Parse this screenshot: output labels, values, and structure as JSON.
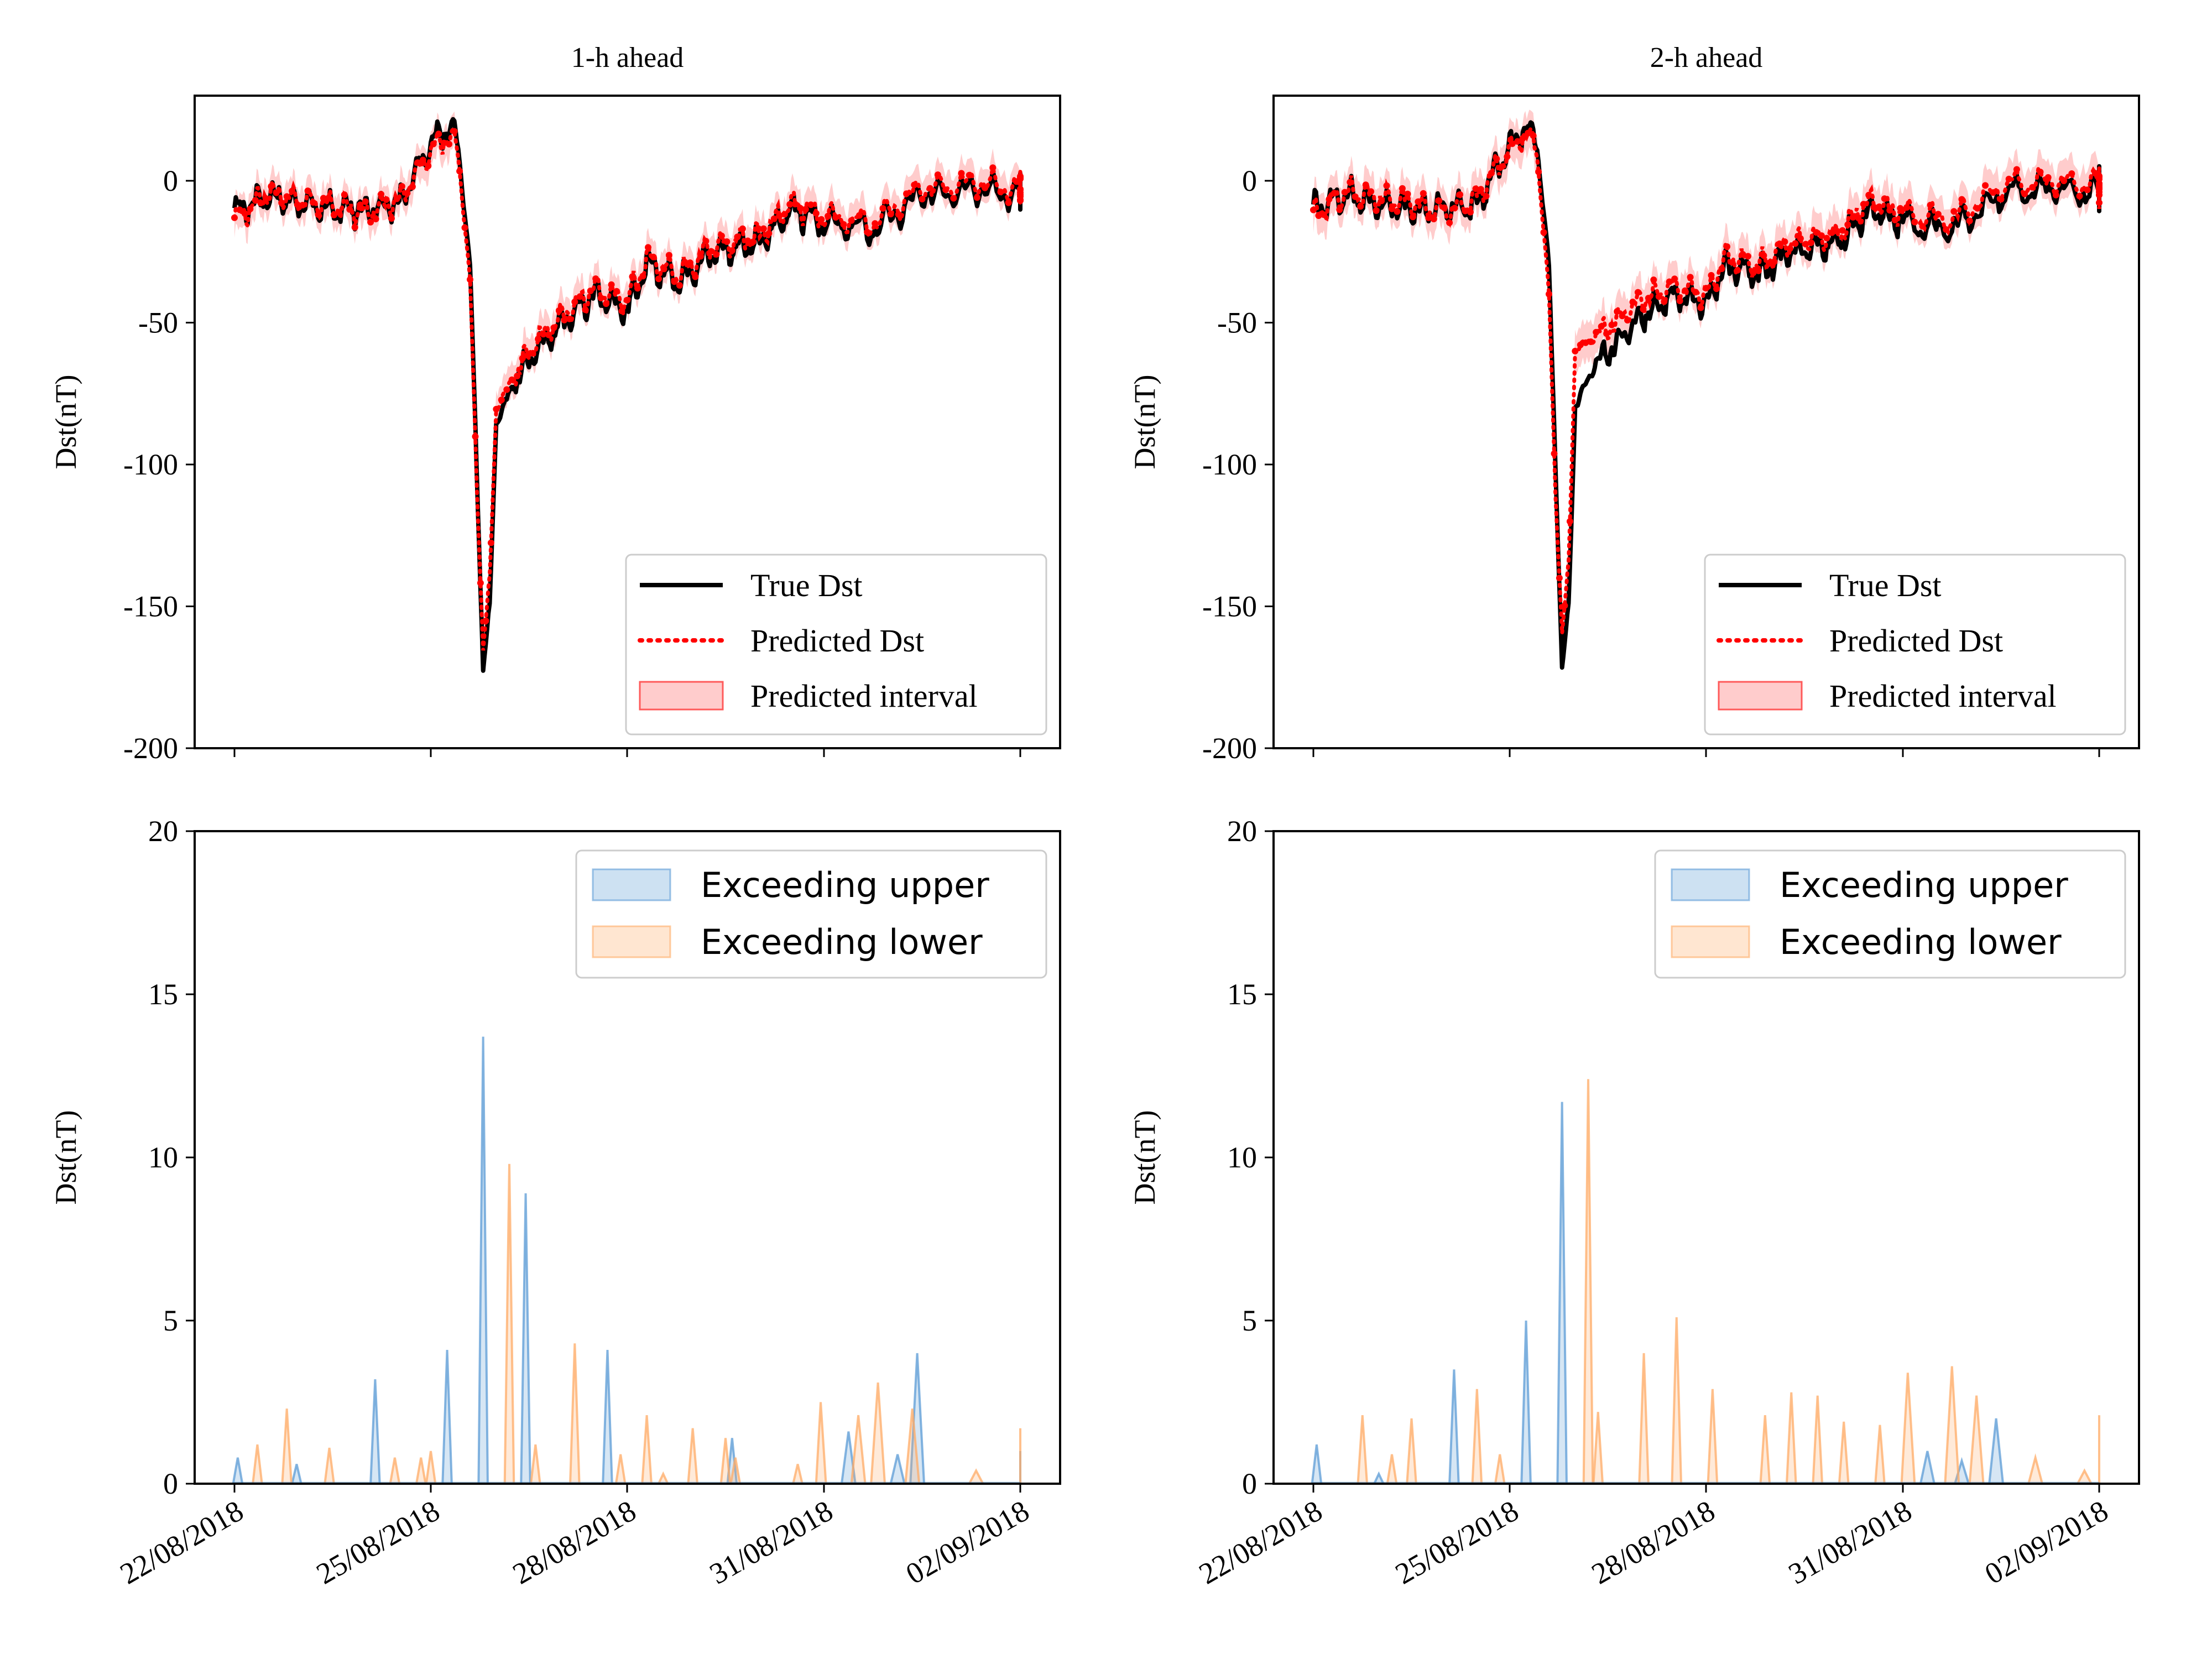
{
  "colors": {
    "true_line": "#000000",
    "pred_line": "#ff0000",
    "interval_fill": "#ff9999",
    "upper_fill": "#5b9bd5",
    "lower_fill": "#ffab66"
  },
  "x_dates": [
    "22/08/2018",
    "25/08/2018",
    "28/08/2018",
    "31/08/2018",
    "02/09/2018"
  ],
  "chart_data": [
    {
      "type": "line",
      "title": "1-h ahead",
      "ylabel": "Dst(nT)",
      "xlabel": "",
      "ylim": [
        -200,
        30
      ],
      "yticks": [
        0,
        -50,
        -100,
        -150,
        -200
      ],
      "ytick_labels": [
        "0",
        "-50",
        "-100",
        "-150",
        "-200"
      ],
      "x_ticks": [
        "22/08/2018",
        "25/08/2018",
        "28/08/2018",
        "31/08/2018",
        "02/09/2018"
      ],
      "show_xtick_labels": false,
      "legend": {
        "position": "lower-right",
        "items": [
          "True Dst",
          "Predicted Dst",
          "Predicted interval"
        ]
      },
      "x_key_days": [
        0,
        0.5,
        1,
        1.5,
        2,
        2.5,
        3.0,
        3.2,
        3.4,
        3.6,
        3.7,
        3.8,
        3.9,
        4.0,
        4.3,
        4.6,
        5.0,
        5.5,
        6.0,
        6.3,
        6.8,
        7.3,
        7.5,
        8.0,
        8.5,
        9.0,
        9.5,
        10.0,
        10.5,
        11.0,
        11.5,
        12.0
      ],
      "series": [
        {
          "name": "True Dst",
          "y_key": [
            -11,
            -5,
            -8,
            -10,
            -10,
            -8,
            12,
            18,
            16,
            -30,
            -100,
            -172,
            -150,
            -85,
            -70,
            -60,
            -50,
            -40,
            -45,
            -30,
            -35,
            -25,
            -24,
            -22,
            -10,
            -15,
            -17,
            -5,
            -2,
            -5,
            -3,
            -4
          ]
        },
        {
          "name": "Predicted Dst",
          "y_key": [
            -14,
            -4,
            -7,
            -9,
            -11,
            -7,
            10,
            15,
            13,
            -35,
            -105,
            -165,
            -140,
            -80,
            -68,
            -57,
            -48,
            -38,
            -42,
            -28,
            -33,
            -23,
            -22,
            -20,
            -8,
            -13,
            -15,
            -3,
            0,
            -3,
            -2,
            -3
          ]
        }
      ],
      "interval_halfwidth": 4
    },
    {
      "type": "line",
      "title": "2-h ahead",
      "ylabel": "Dst(nT)",
      "xlabel": "",
      "ylim": [
        -200,
        30
      ],
      "yticks": [
        0,
        -50,
        -100,
        -150,
        -200
      ],
      "ytick_labels": [
        "0",
        "-50",
        "-100",
        "-150",
        "-200"
      ],
      "x_ticks": [
        "22/08/2018",
        "25/08/2018",
        "28/08/2018",
        "31/08/2018",
        "02/09/2018"
      ],
      "show_xtick_labels": false,
      "legend": {
        "position": "lower-right",
        "items": [
          "True Dst",
          "Predicted Dst",
          "Predicted interval"
        ]
      },
      "x_key_days": [
        0,
        0.5,
        1,
        1.5,
        2,
        2.5,
        3.0,
        3.2,
        3.4,
        3.6,
        3.7,
        3.8,
        3.9,
        4.0,
        4.3,
        4.6,
        5.0,
        5.5,
        6.0,
        6.3,
        6.8,
        7.3,
        7.5,
        8.0,
        8.5,
        9.0,
        9.5,
        10.0,
        10.5,
        11.0,
        11.5,
        12.0
      ],
      "series": [
        {
          "name": "True Dst",
          "y_key": [
            -10,
            -5,
            -8,
            -10,
            -10,
            -8,
            12,
            18,
            16,
            -30,
            -100,
            -172,
            -150,
            -80,
            -65,
            -58,
            -48,
            -40,
            -43,
            -30,
            -33,
            -25,
            -24,
            -22,
            -10,
            -15,
            -17,
            -5,
            -2,
            -5,
            0,
            -5
          ]
        },
        {
          "name": "Predicted Dst",
          "y_key": [
            -12,
            -4,
            -6,
            -8,
            -11,
            -6,
            11,
            16,
            14,
            -40,
            -110,
            -160,
            -135,
            -60,
            -55,
            -50,
            -42,
            -37,
            -40,
            -27,
            -30,
            -22,
            -21,
            -19,
            -7,
            -12,
            -14,
            -2,
            0,
            -2,
            0,
            -6
          ]
        }
      ],
      "interval_halfwidth": 5
    },
    {
      "type": "area",
      "title": "",
      "ylabel": "Dst(nT)",
      "xlabel": "",
      "ylim": [
        0,
        20
      ],
      "yticks": [
        0,
        5,
        10,
        15,
        20
      ],
      "ytick_labels": [
        "0",
        "5",
        "10",
        "15",
        "20"
      ],
      "x_ticks": [
        "22/08/2018",
        "25/08/2018",
        "28/08/2018",
        "31/08/2018",
        "02/09/2018"
      ],
      "show_xtick_labels": true,
      "legend": {
        "position": "top-right",
        "items": [
          "Exceeding upper",
          "Exceeding lower"
        ]
      },
      "series": [
        {
          "name": "Exceeding upper",
          "spikes": [
            [
              0.05,
              0.8
            ],
            [
              0.95,
              0.6
            ],
            [
              2.15,
              3.2
            ],
            [
              3.25,
              4.1
            ],
            [
              3.8,
              13.7
            ],
            [
              4.45,
              8.9
            ],
            [
              5.7,
              4.1
            ],
            [
              7.6,
              1.4
            ],
            [
              9.25,
              1.6
            ],
            [
              9.75,
              0.9
            ],
            [
              9.95,
              4.0
            ],
            [
              11.95,
              1.0
            ]
          ]
        },
        {
          "name": "Exceeding lower",
          "spikes": [
            [
              0.35,
              1.2
            ],
            [
              0.8,
              2.3
            ],
            [
              1.45,
              1.1
            ],
            [
              2.45,
              0.8
            ],
            [
              2.85,
              0.8
            ],
            [
              3.0,
              1.0
            ],
            [
              4.2,
              9.8
            ],
            [
              4.6,
              1.2
            ],
            [
              5.2,
              4.3
            ],
            [
              5.9,
              0.9
            ],
            [
              6.3,
              2.1
            ],
            [
              6.55,
              0.3
            ],
            [
              7.0,
              1.7
            ],
            [
              7.5,
              1.4
            ],
            [
              7.65,
              0.8
            ],
            [
              8.6,
              0.6
            ],
            [
              8.95,
              2.5
            ],
            [
              9.35,
              2.1
            ],
            [
              9.55,
              3.1
            ],
            [
              9.9,
              2.3
            ],
            [
              10.55,
              0.4
            ],
            [
              11.25,
              1.7
            ]
          ]
        }
      ]
    },
    {
      "type": "area",
      "title": "",
      "ylabel": "Dst(nT)",
      "xlabel": "",
      "ylim": [
        0,
        20
      ],
      "yticks": [
        0,
        5,
        10,
        15,
        20
      ],
      "ytick_labels": [
        "0",
        "5",
        "10",
        "15",
        "20"
      ],
      "x_ticks": [
        "22/08/2018",
        "25/08/2018",
        "28/08/2018",
        "31/08/2018",
        "02/09/2018"
      ],
      "show_xtick_labels": true,
      "legend": {
        "position": "top-right",
        "items": [
          "Exceeding upper",
          "Exceeding lower"
        ]
      },
      "series": [
        {
          "name": "Exceeding upper",
          "spikes": [
            [
              0.05,
              1.2
            ],
            [
              1.0,
              0.3
            ],
            [
              2.15,
              3.5
            ],
            [
              3.25,
              5.0
            ],
            [
              3.8,
              11.7
            ],
            [
              9.25,
              1.0
            ],
            [
              9.6,
              0.7
            ],
            [
              9.95,
              2.0
            ]
          ]
        },
        {
          "name": "Exceeding lower",
          "spikes": [
            [
              0.75,
              2.1
            ],
            [
              1.2,
              0.9
            ],
            [
              1.5,
              2.0
            ],
            [
              2.5,
              2.9
            ],
            [
              2.85,
              0.9
            ],
            [
              4.2,
              12.4
            ],
            [
              4.35,
              2.2
            ],
            [
              5.05,
              4.0
            ],
            [
              5.55,
              5.1
            ],
            [
              6.1,
              2.9
            ],
            [
              6.9,
              2.1
            ],
            [
              7.3,
              2.8
            ],
            [
              7.7,
              2.7
            ],
            [
              8.1,
              1.9
            ],
            [
              8.65,
              1.8
            ],
            [
              9.05,
              3.4
            ],
            [
              9.5,
              3.6
            ],
            [
              9.75,
              2.7
            ],
            [
              10.35,
              0.8
            ],
            [
              10.85,
              0.4
            ],
            [
              11.85,
              2.1
            ]
          ]
        }
      ]
    }
  ]
}
